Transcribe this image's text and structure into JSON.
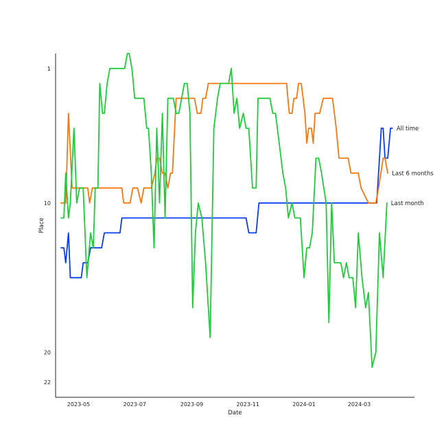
{
  "chart_data": {
    "type": "line",
    "title": "",
    "xlabel": "Date",
    "ylabel": "Place",
    "y_inverted": true,
    "ylim": [
      23,
      0
    ],
    "xlim": [
      "2023-04-06",
      "2024-04-30"
    ],
    "grid": false,
    "legend": "none (series named by end-of-line labels)",
    "yticks": [
      1,
      10,
      20,
      22
    ],
    "xticks": [
      "2023-05",
      "2023-07",
      "2023-09",
      "2023-11",
      "2024-01",
      "2024-03"
    ],
    "series": [
      {
        "name": "All time",
        "color": "#0a3df0",
        "points": [
          [
            "2023-04-12",
            13
          ],
          [
            "2023-04-15",
            13
          ],
          [
            "2023-04-17",
            14
          ],
          [
            "2023-04-20",
            12
          ],
          [
            "2023-04-22",
            15
          ],
          [
            "2023-05-01",
            15
          ],
          [
            "2023-05-04",
            15
          ],
          [
            "2023-05-06",
            14
          ],
          [
            "2023-05-11",
            14
          ],
          [
            "2023-05-14",
            13
          ],
          [
            "2023-05-26",
            13
          ],
          [
            "2023-05-29",
            12
          ],
          [
            "2023-06-10",
            12
          ],
          [
            "2023-06-15",
            12
          ],
          [
            "2023-06-17",
            11
          ],
          [
            "2023-10-30",
            11
          ],
          [
            "2023-11-02",
            12
          ],
          [
            "2023-11-10",
            12
          ],
          [
            "2023-11-13",
            10
          ],
          [
            "2024-03-20",
            10
          ],
          [
            "2024-03-22",
            8
          ],
          [
            "2024-03-25",
            5
          ],
          [
            "2024-03-27",
            5
          ],
          [
            "2024-03-29",
            7
          ],
          [
            "2024-04-01",
            7
          ],
          [
            "2024-04-04",
            5
          ],
          [
            "2024-04-06",
            5
          ]
        ]
      },
      {
        "name": "Last 6 months",
        "color": "#f5790f",
        "points": [
          [
            "2023-04-12",
            10
          ],
          [
            "2023-04-17",
            10
          ],
          [
            "2023-04-20",
            4
          ],
          [
            "2023-04-24",
            9
          ],
          [
            "2023-05-11",
            9
          ],
          [
            "2023-05-13",
            10
          ],
          [
            "2023-05-16",
            9
          ],
          [
            "2023-06-17",
            9
          ],
          [
            "2023-06-19",
            10
          ],
          [
            "2023-06-26",
            10
          ],
          [
            "2023-06-29",
            9
          ],
          [
            "2023-07-04",
            9
          ],
          [
            "2023-07-08",
            10
          ],
          [
            "2023-07-11",
            9
          ],
          [
            "2023-07-19",
            9
          ],
          [
            "2023-07-23",
            8
          ],
          [
            "2023-07-25",
            7
          ],
          [
            "2023-07-28",
            7
          ],
          [
            "2023-07-31",
            8
          ],
          [
            "2023-08-03",
            8
          ],
          [
            "2023-08-06",
            9
          ],
          [
            "2023-08-09",
            8
          ],
          [
            "2023-08-11",
            8
          ],
          [
            "2023-08-15",
            3
          ],
          [
            "2023-09-04",
            3
          ],
          [
            "2023-09-07",
            4
          ],
          [
            "2023-09-11",
            4
          ],
          [
            "2023-09-13",
            3
          ],
          [
            "2023-09-16",
            3
          ],
          [
            "2023-09-19",
            2
          ],
          [
            "2023-12-13",
            2
          ],
          [
            "2023-12-16",
            4
          ],
          [
            "2023-12-19",
            4
          ],
          [
            "2023-12-21",
            3
          ],
          [
            "2023-12-24",
            3
          ],
          [
            "2023-12-26",
            2
          ],
          [
            "2023-12-29",
            2
          ],
          [
            "2024-01-02",
            4
          ],
          [
            "2024-01-04",
            6
          ],
          [
            "2024-01-06",
            5
          ],
          [
            "2024-01-09",
            5
          ],
          [
            "2024-01-11",
            6
          ],
          [
            "2024-01-13",
            4
          ],
          [
            "2024-01-18",
            4
          ],
          [
            "2024-01-22",
            3
          ],
          [
            "2024-02-01",
            3
          ],
          [
            "2024-02-05",
            5
          ],
          [
            "2024-02-08",
            7
          ],
          [
            "2024-02-18",
            7
          ],
          [
            "2024-02-21",
            8
          ],
          [
            "2024-02-29",
            8
          ],
          [
            "2024-03-03",
            9
          ],
          [
            "2024-03-11",
            10
          ],
          [
            "2024-03-19",
            10
          ],
          [
            "2024-03-22",
            9
          ],
          [
            "2024-03-27",
            7
          ],
          [
            "2024-03-29",
            7
          ],
          [
            "2024-04-01",
            8
          ]
        ]
      },
      {
        "name": "Last month",
        "color": "#1ecb3a",
        "points": [
          [
            "2023-04-12",
            11
          ],
          [
            "2023-04-15",
            11
          ],
          [
            "2023-04-17",
            8
          ],
          [
            "2023-04-20",
            11
          ],
          [
            "2023-04-22",
            10
          ],
          [
            "2023-04-26",
            5
          ],
          [
            "2023-04-29",
            10
          ],
          [
            "2023-05-02",
            9
          ],
          [
            "2023-05-06",
            9
          ],
          [
            "2023-05-10",
            15
          ],
          [
            "2023-05-14",
            12
          ],
          [
            "2023-05-17",
            13
          ],
          [
            "2023-05-19",
            9
          ],
          [
            "2023-05-22",
            9
          ],
          [
            "2023-05-24",
            2
          ],
          [
            "2023-05-27",
            4
          ],
          [
            "2023-05-29",
            4
          ],
          [
            "2023-06-01",
            2
          ],
          [
            "2023-06-04",
            1
          ],
          [
            "2023-06-20",
            1
          ],
          [
            "2023-06-23",
            0
          ],
          [
            "2023-06-25",
            0
          ],
          [
            "2023-06-28",
            1
          ],
          [
            "2023-07-01",
            3
          ],
          [
            "2023-07-11",
            3
          ],
          [
            "2023-07-14",
            5
          ],
          [
            "2023-07-16",
            5
          ],
          [
            "2023-07-19",
            8
          ],
          [
            "2023-07-22",
            13
          ],
          [
            "2023-07-25",
            5
          ],
          [
            "2023-07-28",
            10
          ],
          [
            "2023-07-31",
            4
          ],
          [
            "2023-08-03",
            11
          ],
          [
            "2023-08-06",
            3
          ],
          [
            "2023-08-12",
            3
          ],
          [
            "2023-08-15",
            4
          ],
          [
            "2023-08-18",
            4
          ],
          [
            "2023-08-21",
            3
          ],
          [
            "2023-08-24",
            2
          ],
          [
            "2023-08-27",
            2
          ],
          [
            "2023-08-30",
            4
          ],
          [
            "2023-09-02",
            17
          ],
          [
            "2023-09-05",
            12
          ],
          [
            "2023-09-08",
            10
          ],
          [
            "2023-09-12",
            11
          ],
          [
            "2023-09-16",
            14
          ],
          [
            "2023-09-21",
            19
          ],
          [
            "2023-09-25",
            5
          ],
          [
            "2023-09-29",
            3
          ],
          [
            "2023-10-02",
            2
          ],
          [
            "2023-10-11",
            2
          ],
          [
            "2023-10-14",
            1
          ],
          [
            "2023-10-17",
            4
          ],
          [
            "2023-10-20",
            3
          ],
          [
            "2023-10-23",
            5
          ],
          [
            "2023-10-27",
            4
          ],
          [
            "2023-10-30",
            5
          ],
          [
            "2023-11-02",
            5
          ],
          [
            "2023-11-06",
            9
          ],
          [
            "2023-11-10",
            9
          ],
          [
            "2023-11-12",
            3
          ],
          [
            "2023-11-25",
            3
          ],
          [
            "2023-11-28",
            4
          ],
          [
            "2023-12-01",
            4
          ],
          [
            "2023-12-05",
            6
          ],
          [
            "2023-12-09",
            8
          ],
          [
            "2023-12-12",
            9
          ],
          [
            "2023-12-15",
            11
          ],
          [
            "2023-12-19",
            10
          ],
          [
            "2023-12-22",
            11
          ],
          [
            "2023-12-28",
            11
          ],
          [
            "2024-01-01",
            15
          ],
          [
            "2024-01-04",
            13
          ],
          [
            "2024-01-07",
            13
          ],
          [
            "2024-01-10",
            12
          ],
          [
            "2024-01-14",
            7
          ],
          [
            "2024-01-17",
            7
          ],
          [
            "2024-01-20",
            8
          ],
          [
            "2024-01-25",
            10
          ],
          [
            "2024-01-28",
            18
          ],
          [
            "2024-01-31",
            10
          ],
          [
            "2024-02-03",
            14
          ],
          [
            "2024-02-10",
            14
          ],
          [
            "2024-02-13",
            15
          ],
          [
            "2024-02-16",
            14
          ],
          [
            "2024-02-19",
            15
          ],
          [
            "2024-02-23",
            15
          ],
          [
            "2024-02-26",
            17
          ],
          [
            "2024-02-29",
            12
          ],
          [
            "2024-03-04",
            15
          ],
          [
            "2024-03-08",
            17
          ],
          [
            "2024-03-11",
            16
          ],
          [
            "2024-03-15",
            21
          ],
          [
            "2024-03-19",
            20
          ],
          [
            "2024-03-23",
            12
          ],
          [
            "2024-03-27",
            15
          ],
          [
            "2024-03-31",
            10
          ]
        ]
      }
    ]
  }
}
